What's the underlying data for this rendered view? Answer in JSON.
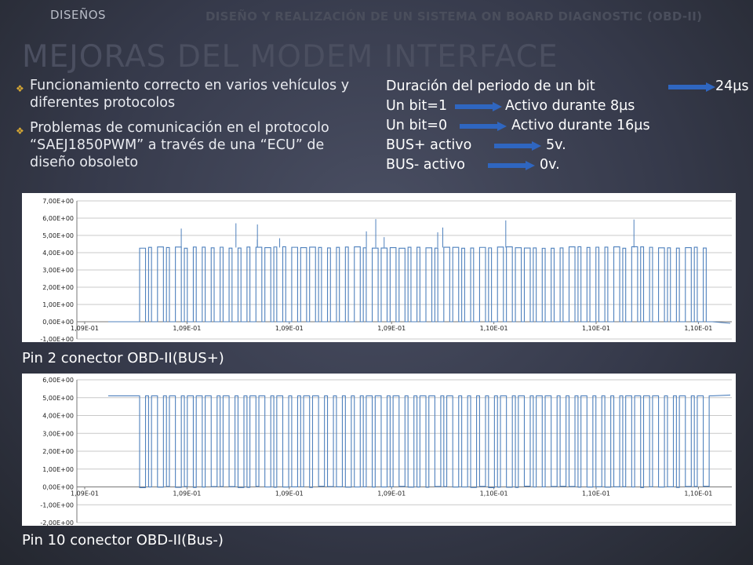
{
  "header": {
    "section": "DISEÑOS",
    "course_title": "DISEÑO Y REALIZACIÓN DE UN SISTEMA ON BOARD DIAGNOSTIC (OBD-II)"
  },
  "title": "MEJORAS DEL MODEM INTERFACE",
  "bullets": [
    {
      "icon": "diamond-bullet-icon",
      "text": "Funcionamiento correcto en varios vehículos y diferentes protocolos"
    },
    {
      "icon": "diamond-bullet-icon",
      "text": "Problemas de comunicación en el protocolo “SAEJ1850PWM” a través de una “ECU” de diseño obsoleto"
    }
  ],
  "specs": [
    {
      "label": "Duración del periodo de un bit",
      "value": "24µs"
    },
    {
      "label": "Un bit=1",
      "value": "Activo durante 8µs"
    },
    {
      "label": "Un bit=0",
      "value": "Activo durante 16µs"
    },
    {
      "label": "BUS+ activo",
      "value": "5v."
    },
    {
      "label": "BUS- activo",
      "value": "0v."
    }
  ],
  "colors": {
    "accent_bullet": "#d6a734",
    "arrow": "#2f66c0",
    "trace": "#4f81bd",
    "title": "#4b4f60"
  },
  "chart_data": [
    {
      "type": "line",
      "caption": "Pin 2 conector OBD-II(BUS+)",
      "y_ticks": [
        "7,00E+00",
        "6,00E+00",
        "5,00E+00",
        "4,00E+00",
        "3,00E+00",
        "2,00E+00",
        "1,00E+00",
        "0,00E+00",
        "-1,00E+00"
      ],
      "ylim": [
        -1,
        7
      ],
      "x_ticks": [
        "1,09E-01",
        "1,09E-01",
        "1,09E-01",
        "1,09E-01",
        "1,10E-01",
        "1,10E-01",
        "1,10E-01"
      ],
      "grid": true,
      "series": [
        {
          "idle_level": 0.0,
          "active_level": 4.3,
          "spike_max": 6.0,
          "pulse_count": 64
        }
      ]
    },
    {
      "type": "line",
      "caption": "Pin 10 conector OBD-II(Bus-)",
      "y_ticks": [
        "6,00E+00",
        "5,00E+00",
        "4,00E+00",
        "3,00E+00",
        "2,00E+00",
        "1,00E+00",
        "0,00E+00",
        "-1,00E+00",
        "-2,00E+00"
      ],
      "ylim": [
        -2,
        6
      ],
      "x_ticks": [
        "1,09E-01",
        "1,09E-01",
        "1,09E-01",
        "1,09E-01",
        "1,10E-01",
        "1,10E-01",
        "1,10E-01"
      ],
      "grid": true,
      "series": [
        {
          "idle_level": 5.1,
          "active_level": 0.0,
          "pulse_count": 64
        }
      ]
    }
  ]
}
